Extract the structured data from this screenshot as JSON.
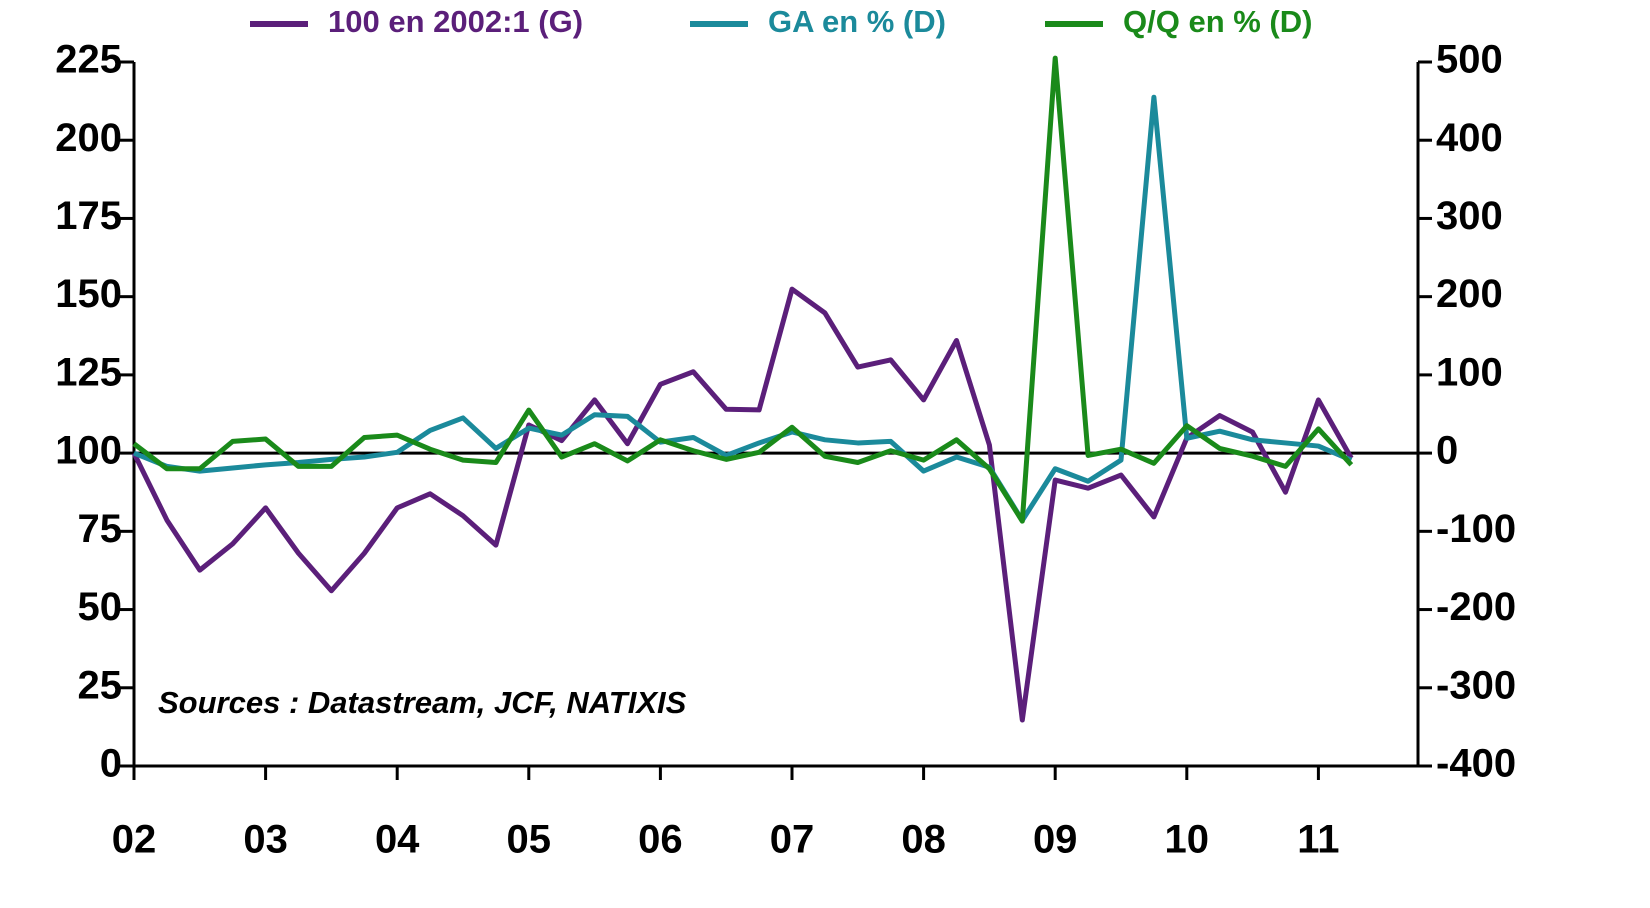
{
  "chart_data": {
    "type": "line",
    "annotation": "Sources : Datastream, JCF, NATIXIS",
    "categories": [
      "02",
      null,
      null,
      null,
      "03",
      null,
      null,
      null,
      "04",
      null,
      null,
      null,
      "05",
      null,
      null,
      null,
      "06",
      null,
      null,
      null,
      "07",
      null,
      null,
      null,
      "08",
      null,
      null,
      null,
      "09",
      null,
      null,
      null,
      "10",
      null,
      null,
      null,
      "11",
      null
    ],
    "series": [
      {
        "name": "100 en 2002:1 (G)",
        "color": "#5b1f7a",
        "axis": "y",
        "values": [
          100,
          78.6,
          62.6,
          71,
          82.5,
          68,
          56,
          68,
          82.5,
          87,
          80,
          70.6,
          109,
          104,
          117,
          103,
          122,
          126,
          114,
          113.8,
          152.4,
          144.8,
          127.5,
          129.8,
          117,
          136,
          102.6,
          14.7,
          91.4,
          88.8,
          93,
          79.6,
          104.8,
          112,
          106.7,
          87.5,
          117,
          98.4
        ]
      },
      {
        "name": "GA en % (D)",
        "color": "#1b8a9b",
        "axis": "y2",
        "values": [
          0,
          -17,
          -23,
          -19,
          -15,
          -12,
          -8,
          -5,
          1,
          29,
          45,
          6,
          32,
          23,
          49,
          47,
          14,
          20,
          -3,
          13,
          27,
          17,
          13,
          15,
          -23,
          -5,
          -18,
          -86,
          -20,
          -36,
          -9,
          455,
          19,
          28,
          17,
          13,
          9,
          -9
        ]
      },
      {
        "name": "Q/Q en % (D)",
        "color": "#1a8a1a",
        "axis": "y2",
        "values": [
          12,
          -20,
          -20,
          15,
          18,
          -17,
          -17,
          20,
          23,
          5,
          -9,
          -12,
          55,
          -5,
          12,
          -10,
          17,
          3,
          -8,
          1,
          33,
          -4,
          -12,
          3,
          -9,
          17,
          -20,
          -87,
          505,
          -3,
          5,
          -13,
          35,
          6,
          -4,
          -17,
          31,
          -15
        ]
      }
    ],
    "ylim": [
      0,
      225
    ],
    "yticks": [
      0,
      25,
      50,
      75,
      100,
      125,
      150,
      175,
      200,
      225
    ],
    "y2lim": [
      -400,
      500
    ],
    "y2ticks": [
      -400,
      -300,
      -200,
      -100,
      0,
      100,
      200,
      300,
      400,
      500
    ],
    "legend": "top"
  }
}
